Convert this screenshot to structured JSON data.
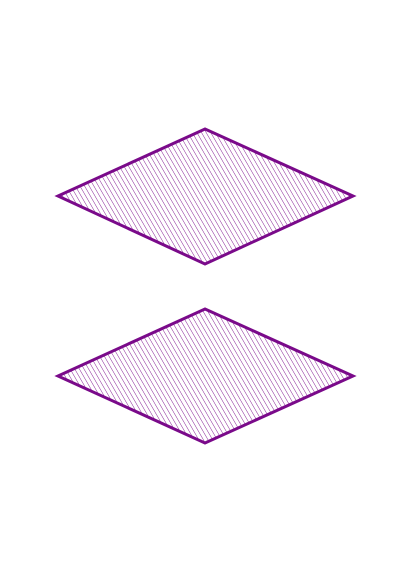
{
  "figure": {
    "background_color": "#ffffff",
    "shapes": [
      {
        "kind": "rhombus",
        "stroke_color": "#7a0a8a",
        "fill_pattern": "diagonal-hatch",
        "hatch_color": "#7a0a8a"
      },
      {
        "kind": "rhombus",
        "stroke_color": "#7a0a8a",
        "fill_pattern": "diagonal-hatch",
        "hatch_color": "#7a0a8a"
      }
    ]
  }
}
